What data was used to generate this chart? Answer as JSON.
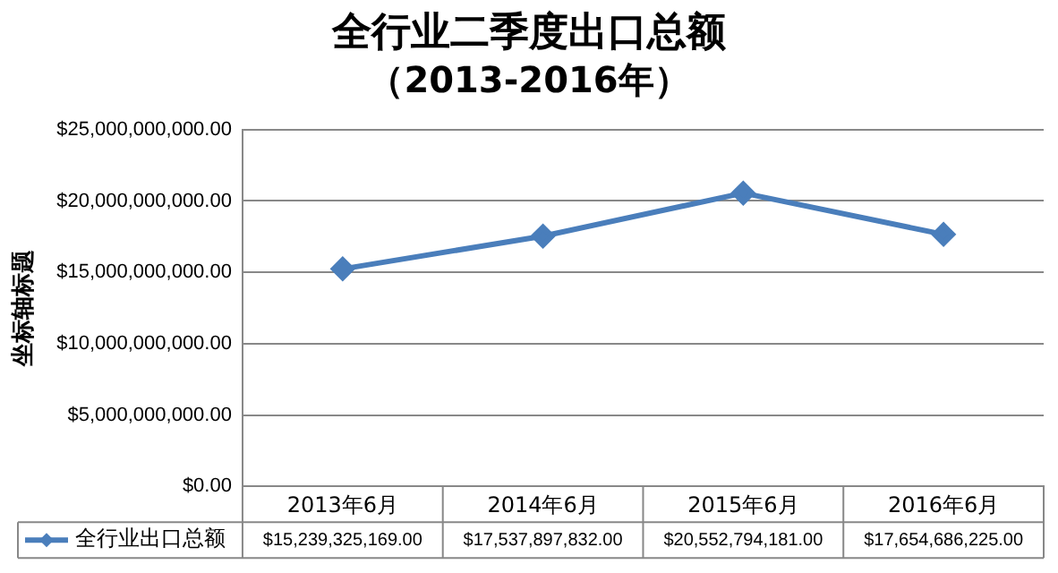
{
  "chart_data": {
    "type": "line",
    "title": "全行业二季度出口总额",
    "subtitle": "（2013-2016年）",
    "ylabel": "坐标轴标题",
    "categories": [
      "2013年6月",
      "2014年6月",
      "2015年6月",
      "2016年6月"
    ],
    "series": [
      {
        "name": "全行业出口总额",
        "color": "#4a7ebb",
        "values": [
          15239325169,
          17537897832,
          20552794181,
          17654686225
        ],
        "value_labels": [
          "$15,239,325,169.00",
          "$17,537,897,832.00",
          "$20,552,794,181.00",
          "$17,654,686,225.00"
        ]
      }
    ],
    "ylim": [
      0,
      25000000000
    ],
    "yticks": [
      {
        "value": 0,
        "label": "$0.00"
      },
      {
        "value": 5000000000,
        "label": "$5,000,000,000.00"
      },
      {
        "value": 10000000000,
        "label": "$10,000,000,000.00"
      },
      {
        "value": 15000000000,
        "label": "$15,000,000,000.00"
      },
      {
        "value": 20000000000,
        "label": "$20,000,000,000.00"
      },
      {
        "value": 25000000000,
        "label": "$25,000,000,000.00"
      }
    ],
    "grid": "y",
    "legend": "bottom",
    "marker": "diamond",
    "line_style": "solid"
  }
}
